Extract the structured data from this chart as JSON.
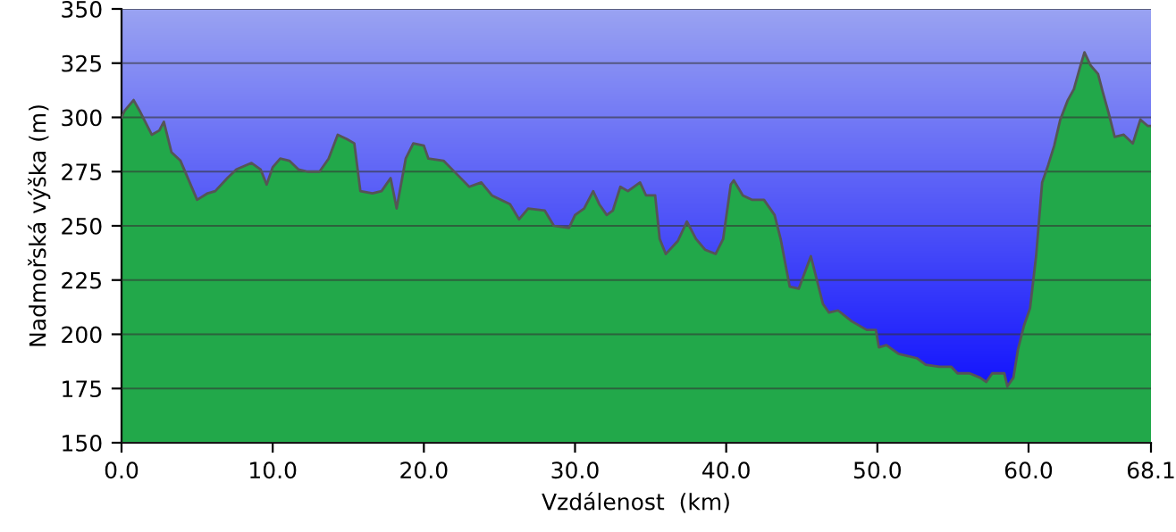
{
  "chart_data": {
    "type": "area",
    "xlabel": "Vzdálenost  (km)",
    "ylabel": "Nadmořská výška (m)",
    "x": [
      0.0,
      0.2,
      0.8,
      1.2,
      2.0,
      2.5,
      2.8,
      3.3,
      3.9,
      5.0,
      5.7,
      6.2,
      7.0,
      7.6,
      8.6,
      9.2,
      9.6,
      10.0,
      10.5,
      11.1,
      11.7,
      12.3,
      13.1,
      13.7,
      14.3,
      14.9,
      15.4,
      15.8,
      16.6,
      17.2,
      17.8,
      18.2,
      18.8,
      19.3,
      20.0,
      20.3,
      21.3,
      22.3,
      23.0,
      23.8,
      24.5,
      25.7,
      26.3,
      26.9,
      28.0,
      28.6,
      29.6,
      30.0,
      30.6,
      31.2,
      31.6,
      32.1,
      32.5,
      33.0,
      33.5,
      34.3,
      34.7,
      35.3,
      35.6,
      36.0,
      36.8,
      37.4,
      38.0,
      38.6,
      39.3,
      39.8,
      40.3,
      40.5,
      41.1,
      41.7,
      42.5,
      43.2,
      43.6,
      44.2,
      44.8,
      45.6,
      46.4,
      46.8,
      47.4,
      48.3,
      49.3,
      49.9,
      50.1,
      50.6,
      51.4,
      52.0,
      52.6,
      53.2,
      54.1,
      54.9,
      55.3,
      56.1,
      56.8,
      57.2,
      57.6,
      58.4,
      58.6,
      59.0,
      59.3,
      59.7,
      60.1,
      60.5,
      60.9,
      61.3,
      61.7,
      62.1,
      62.6,
      63.0,
      63.4,
      63.7,
      64.1,
      64.6,
      64.9,
      65.3,
      65.7,
      66.3,
      66.9,
      67.4,
      67.9,
      68.1
    ],
    "values": [
      300,
      303,
      308,
      303,
      292,
      294,
      298,
      284,
      280,
      262,
      265,
      266,
      272,
      276,
      279,
      276,
      269,
      277,
      281,
      280,
      276,
      275,
      275,
      281,
      292,
      290,
      288,
      266,
      265,
      266,
      272,
      258,
      281,
      288,
      287,
      281,
      280,
      273,
      268,
      270,
      264,
      260,
      253,
      258,
      257,
      250,
      249,
      255,
      258,
      266,
      260,
      255,
      257,
      268,
      266,
      270,
      264,
      264,
      244,
      237,
      243,
      252,
      244,
      239,
      237,
      244,
      269,
      271,
      264,
      262,
      262,
      255,
      244,
      222,
      221,
      236,
      214,
      210,
      211,
      206,
      202,
      202,
      194,
      195,
      191,
      190,
      189,
      186,
      185,
      185,
      182,
      182,
      180,
      178,
      182,
      182,
      176,
      180,
      193,
      204,
      212,
      236,
      270,
      278,
      287,
      299,
      308,
      313,
      323,
      330,
      324,
      320,
      312,
      302,
      291,
      292,
      288,
      299,
      296,
      296
    ],
    "color": "#22a84a",
    "xlim": [
      0,
      68.1
    ],
    "ylim": [
      150,
      350
    ],
    "xticks": [
      {
        "value": 0,
        "label": "0.0"
      },
      {
        "value": 10,
        "label": "10.0"
      },
      {
        "value": 20,
        "label": "20.0"
      },
      {
        "value": 30,
        "label": "30.0"
      },
      {
        "value": 40,
        "label": "40.0"
      },
      {
        "value": 50,
        "label": "50.0"
      },
      {
        "value": 60,
        "label": "60.0"
      },
      {
        "value": 68.1,
        "label": "68.1"
      }
    ],
    "yticks": [
      150,
      175,
      200,
      225,
      250,
      275,
      300,
      325,
      350
    ],
    "grid": "y"
  }
}
